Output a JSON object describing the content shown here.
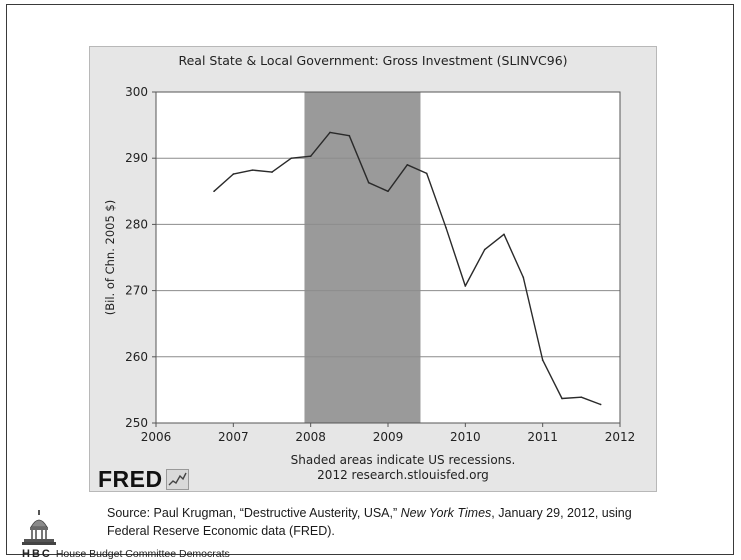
{
  "chart_data": {
    "type": "line",
    "title": "Real State & Local Government: Gross Investment (SLINVC96)",
    "ylabel": "(Bil. of Chn. 2005 $)",
    "xlabel": "",
    "xlim": [
      2006,
      2012
    ],
    "ylim": [
      250,
      300
    ],
    "x_ticks": [
      "2006",
      "2007",
      "2008",
      "2009",
      "2010",
      "2011",
      "2012"
    ],
    "y_ticks": [
      "250",
      "260",
      "270",
      "280",
      "290",
      "300"
    ],
    "grid": "horizontal",
    "recession_shading": [
      {
        "start": 2007.92,
        "end": 2009.42
      }
    ],
    "series": [
      {
        "x": [
          2006.75,
          2007.0,
          2007.25,
          2007.5,
          2007.75,
          2008.0,
          2008.25,
          2008.5,
          2008.75,
          2009.0,
          2009.25,
          2009.5,
          2009.75,
          2010.0,
          2010.25,
          2010.5,
          2010.75,
          2011.0,
          2011.25,
          2011.5,
          2011.75
        ],
        "values": [
          285.0,
          287.6,
          288.2,
          287.9,
          290.0,
          290.3,
          293.9,
          293.4,
          286.3,
          285.0,
          289.0,
          287.7,
          279.5,
          270.7,
          276.2,
          278.5,
          272.0,
          259.5,
          253.7,
          253.9,
          252.8
        ]
      }
    ],
    "color": "#2a2a2a",
    "shade_color": "#9a9a9a",
    "notes": [
      "Shaded areas indicate US recessions.",
      "2012 research.stlouisfed.org"
    ]
  },
  "logo": {
    "text": "FRED"
  },
  "source": {
    "prefix": "Source: Paul Krugman, “Destructive Austerity, USA,” ",
    "publication": "New York Times",
    "suffix": ", January 29, 2012, using",
    "line2": "Federal Reserve Economic data (FRED)."
  },
  "footer": {
    "hbc": "HBC",
    "org": "House Budget Committee Democrats"
  }
}
